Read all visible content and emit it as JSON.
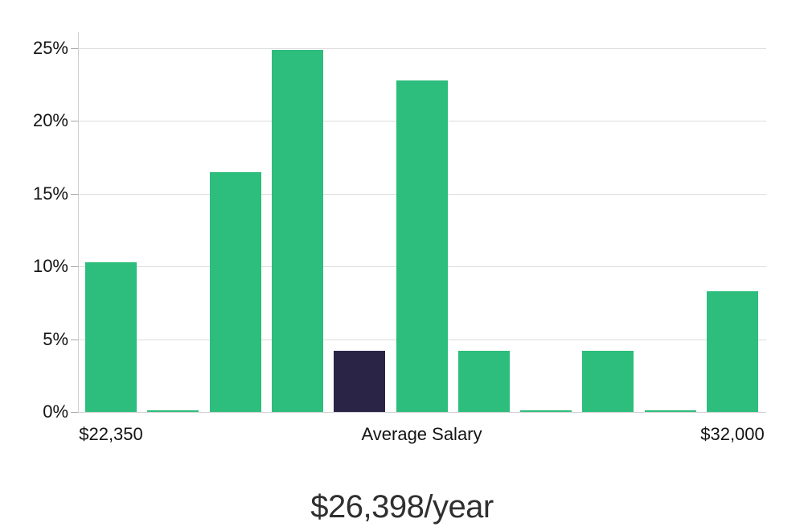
{
  "chart_data": {
    "type": "bar",
    "title": "",
    "xlabel": "",
    "ylabel": "",
    "value_unit": "%",
    "categories": [
      "bin-1",
      "bin-2",
      "bin-3",
      "bin-4",
      "bin-5",
      "bin-6",
      "bin-7",
      "bin-8",
      "bin-9",
      "bin-10",
      "bin-11"
    ],
    "values": [
      10.3,
      0.1,
      16.5,
      24.9,
      4.2,
      22.8,
      4.2,
      0.1,
      4.2,
      0.1,
      8.3
    ],
    "highlight_index": 4,
    "ylim": [
      0,
      26.1
    ],
    "grid": "horizontal",
    "legend": "none",
    "y_ticks": [
      {
        "value": 0,
        "label": "0%"
      },
      {
        "value": 5,
        "label": "5%"
      },
      {
        "value": 10,
        "label": "10%"
      },
      {
        "value": 15,
        "label": "15%"
      },
      {
        "value": 20,
        "label": "20%"
      },
      {
        "value": 25,
        "label": "25%"
      }
    ],
    "x_ticks": [
      {
        "bar_index": 0,
        "label": "$22,350"
      },
      {
        "bar_index": 5,
        "label": "Average Salary"
      },
      {
        "bar_index": 10,
        "label": "$32,000"
      }
    ],
    "colors": {
      "bar": "#2dbd7c",
      "highlight_bar": "#2a2547",
      "gridline": "#dcdcdc",
      "axis_line": "#d0d0d0",
      "tick_mark": "#a6a6a6",
      "tick_label": "#141414"
    }
  },
  "footer": {
    "average_salary_label": "$26,398/year"
  }
}
